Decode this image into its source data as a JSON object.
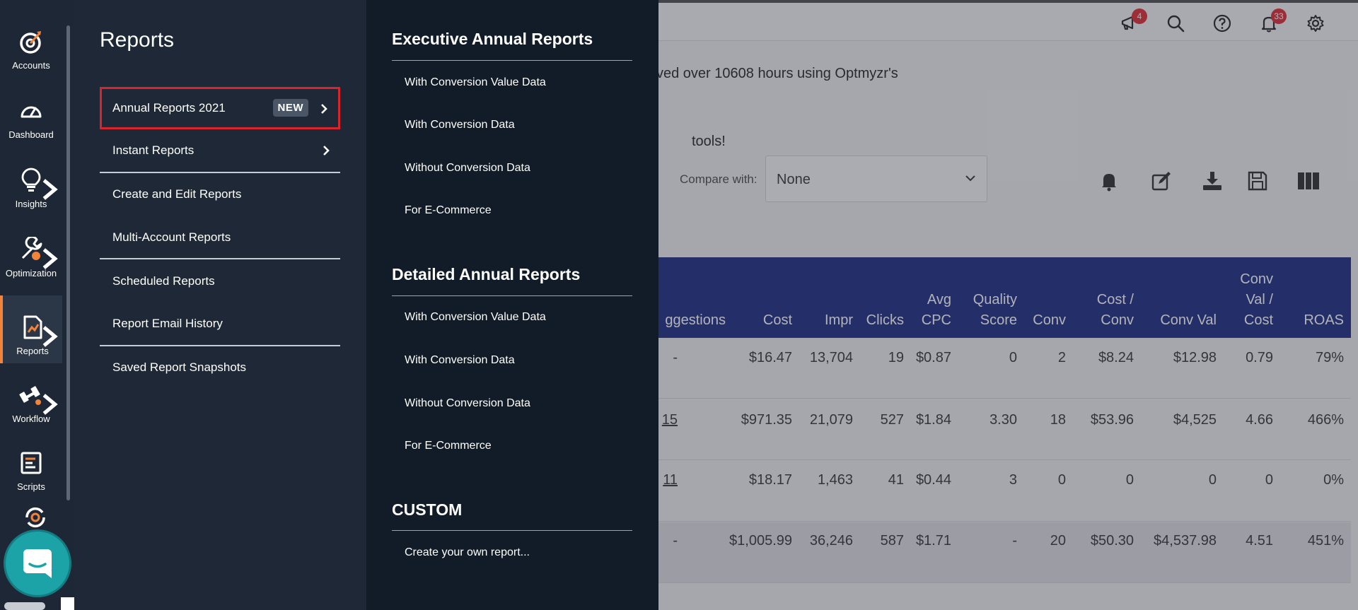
{
  "topbar": {
    "icons": [
      {
        "name": "megaphone-icon",
        "badge": "4"
      },
      {
        "name": "search-icon"
      },
      {
        "name": "help-icon"
      },
      {
        "name": "bell-icon",
        "badge": "33"
      },
      {
        "name": "gear-icon"
      }
    ]
  },
  "background": {
    "savings_text": "ved over 10608 hours using Optmyzr's",
    "tools_text": "tools!",
    "compare_label": "Compare with:",
    "compare_value": "None",
    "table": {
      "headers": [
        {
          "lines": [
            "ggestions"
          ]
        },
        {
          "lines": [
            "Cost"
          ]
        },
        {
          "lines": [
            "Impr"
          ]
        },
        {
          "lines": [
            "Clicks"
          ]
        },
        {
          "lines": [
            "Avg",
            "CPC"
          ]
        },
        {
          "lines": [
            "Quality",
            "Score"
          ]
        },
        {
          "lines": [
            "Conv"
          ]
        },
        {
          "lines": [
            "Cost /",
            "Conv"
          ]
        },
        {
          "lines": [
            "Conv Val"
          ]
        },
        {
          "lines": [
            "Conv",
            "Val /",
            "Cost"
          ]
        },
        {
          "lines": [
            "ROAS"
          ]
        }
      ],
      "rows": [
        [
          "-",
          "$16.47",
          "13,704",
          "19",
          "$0.87",
          "0",
          "2",
          "$8.24",
          "$12.98",
          "0.79",
          "79%"
        ],
        [
          "15",
          "$971.35",
          "21,079",
          "527",
          "$1.84",
          "3.30",
          "18",
          "$53.96",
          "$4,525",
          "4.66",
          "466%"
        ],
        [
          "11",
          "$18.17",
          "1,463",
          "41",
          "$0.44",
          "3",
          "0",
          "0",
          "0",
          "0",
          "0%"
        ],
        [
          "-",
          "$1,005.99",
          "36,246",
          "587",
          "$1.71",
          "-",
          "20",
          "$50.30",
          "$4,537.98",
          "4.51",
          "451%"
        ]
      ]
    }
  },
  "rail": {
    "items": [
      {
        "label": "Accounts",
        "icon": "target-icon"
      },
      {
        "label": "Dashboard",
        "icon": "gauge-icon"
      },
      {
        "label": "Insights",
        "icon": "lightbulb-icon"
      },
      {
        "label": "Optimization",
        "icon": "wrench-icon"
      },
      {
        "label": "Reports",
        "icon": "report-icon"
      },
      {
        "label": "Workflow",
        "icon": "workflow-icon"
      },
      {
        "label": "Scripts",
        "icon": "script-icon"
      }
    ]
  },
  "reports_menu": {
    "title": "Reports",
    "items": [
      {
        "label": "Annual Reports 2021",
        "badge": "NEW"
      },
      {
        "label": "Instant Reports"
      },
      {
        "label": "Create and Edit Reports"
      },
      {
        "label": "Multi-Account Reports"
      },
      {
        "label": "Scheduled Reports"
      },
      {
        "label": "Report Email History"
      },
      {
        "label": "Saved Report Snapshots"
      }
    ]
  },
  "submenu": {
    "sections": [
      {
        "title": "Executive Annual Reports",
        "items": [
          "With Conversion Value Data",
          "With Conversion Data",
          "Without Conversion Data",
          "For E-Commerce"
        ]
      },
      {
        "title": "Detailed Annual Reports",
        "items": [
          "With Conversion Value Data",
          "With Conversion Data",
          "Without Conversion Data",
          "For E-Commerce"
        ]
      },
      {
        "title": "CUSTOM",
        "items": [
          "Create your own report..."
        ]
      }
    ]
  }
}
